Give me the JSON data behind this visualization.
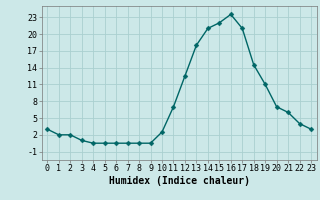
{
  "x": [
    0,
    1,
    2,
    3,
    4,
    5,
    6,
    7,
    8,
    9,
    10,
    11,
    12,
    13,
    14,
    15,
    16,
    17,
    18,
    19,
    20,
    21,
    22,
    23
  ],
  "y": [
    3,
    2,
    2,
    1,
    0.5,
    0.5,
    0.5,
    0.5,
    0.5,
    0.5,
    2.5,
    7,
    12.5,
    18,
    21,
    22,
    23.5,
    21,
    14.5,
    11,
    7,
    6,
    4,
    3
  ],
  "line_color": "#006666",
  "marker_color": "#006666",
  "bg_color": "#cce8e8",
  "grid_color": "#aad0d0",
  "xlabel": "Humidex (Indice chaleur)",
  "ytick_labels": [
    "-1",
    "2",
    "5",
    "8",
    "11",
    "14",
    "17",
    "20",
    "23"
  ],
  "ytick_vals": [
    -1,
    2,
    5,
    8,
    11,
    14,
    17,
    20,
    23
  ],
  "xtick_vals": [
    0,
    1,
    2,
    3,
    4,
    5,
    6,
    7,
    8,
    9,
    10,
    11,
    12,
    13,
    14,
    15,
    16,
    17,
    18,
    19,
    20,
    21,
    22,
    23
  ],
  "xlim": [
    -0.5,
    23.5
  ],
  "ylim": [
    -2.5,
    25
  ],
  "xlabel_fontsize": 7,
  "tick_fontsize": 6,
  "line_width": 1.0,
  "marker_size": 2.5
}
